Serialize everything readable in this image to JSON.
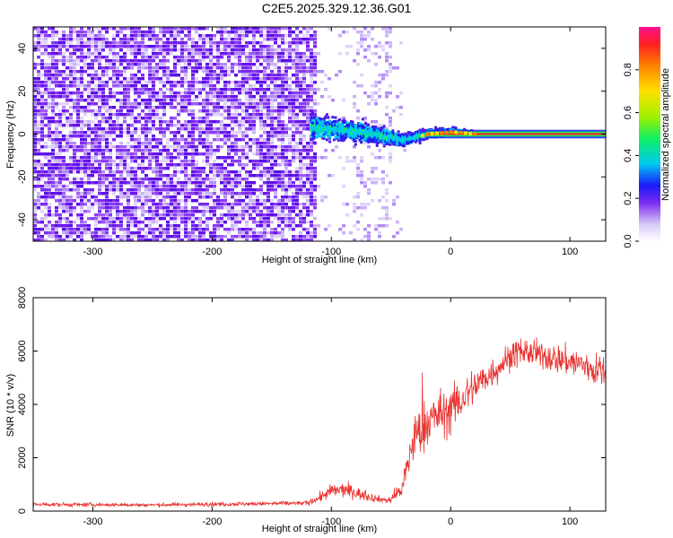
{
  "title": "C2E5.2025.329.12.36.G01",
  "chart_data": [
    {
      "type": "heatmap",
      "name": "spectrogram",
      "xlabel": "Height of straight line (km)",
      "ylabel": "Frequency (Hz)",
      "xlim": [
        -350,
        130
      ],
      "ylim": [
        -50,
        50
      ],
      "xticks": [
        -300,
        -200,
        -100,
        0,
        100
      ],
      "yticks": [
        -40,
        -20,
        0,
        20,
        40
      ],
      "xtick_labels": [
        "-300",
        "-200",
        "-100",
        "0",
        "100"
      ],
      "ytick_labels": [
        "-40",
        "-20",
        "0",
        "20",
        "40"
      ],
      "colorbar": {
        "label": "Normalized spectral amplitude",
        "range": [
          0,
          1
        ],
        "ticks": [
          0.0,
          0.2,
          0.4,
          0.6,
          0.8
        ],
        "tick_labels": [
          "0.0",
          "0.2",
          "0.4",
          "0.6",
          "0.8"
        ]
      },
      "signal": {
        "description_points_x": [
          -120,
          -100,
          -80,
          -60,
          -40,
          -20,
          0,
          20,
          130
        ],
        "center_freq_hz": [
          3,
          2,
          1,
          -1,
          -3,
          0,
          1,
          0,
          0
        ],
        "bandwidth_hz": [
          6,
          5,
          5,
          4,
          3,
          2,
          1.5,
          1,
          1
        ]
      }
    },
    {
      "type": "line",
      "name": "snr",
      "xlabel": "Height of straight line (km)",
      "ylabel": "SNR (10 * v/v)",
      "xlim": [
        -350,
        130
      ],
      "ylim": [
        0,
        8000
      ],
      "xticks": [
        -300,
        -200,
        -100,
        0,
        100
      ],
      "yticks": [
        0,
        2000,
        4000,
        6000,
        8000
      ],
      "xtick_labels": [
        "-300",
        "-200",
        "-100",
        "0",
        "100"
      ],
      "ytick_labels": [
        "0",
        "2000",
        "4000",
        "6000",
        "8000"
      ],
      "color": "#e8312e",
      "series_envelope": {
        "x": [
          -350,
          -300,
          -250,
          -200,
          -150,
          -120,
          -110,
          -100,
          -90,
          -80,
          -70,
          -60,
          -50,
          -40,
          -35,
          -30,
          -25,
          -20,
          -15,
          -10,
          -5,
          0,
          10,
          20,
          30,
          40,
          50,
          60,
          70,
          80,
          90,
          100,
          110,
          120,
          130
        ],
        "mean": [
          250,
          240,
          230,
          260,
          280,
          300,
          500,
          750,
          800,
          700,
          550,
          450,
          400,
          900,
          2000,
          2800,
          3000,
          3300,
          3500,
          3600,
          3700,
          3800,
          4200,
          4700,
          5000,
          5400,
          5800,
          6000,
          5900,
          5800,
          5700,
          5600,
          5500,
          5300,
          5200
        ],
        "noise": [
          80,
          80,
          80,
          90,
          90,
          100,
          200,
          300,
          320,
          280,
          200,
          150,
          150,
          500,
          900,
          1000,
          1100,
          1100,
          1100,
          1000,
          1000,
          1000,
          900,
          800,
          700,
          650,
          600,
          600,
          600,
          600,
          650,
          650,
          700,
          700,
          700
        ]
      }
    }
  ]
}
